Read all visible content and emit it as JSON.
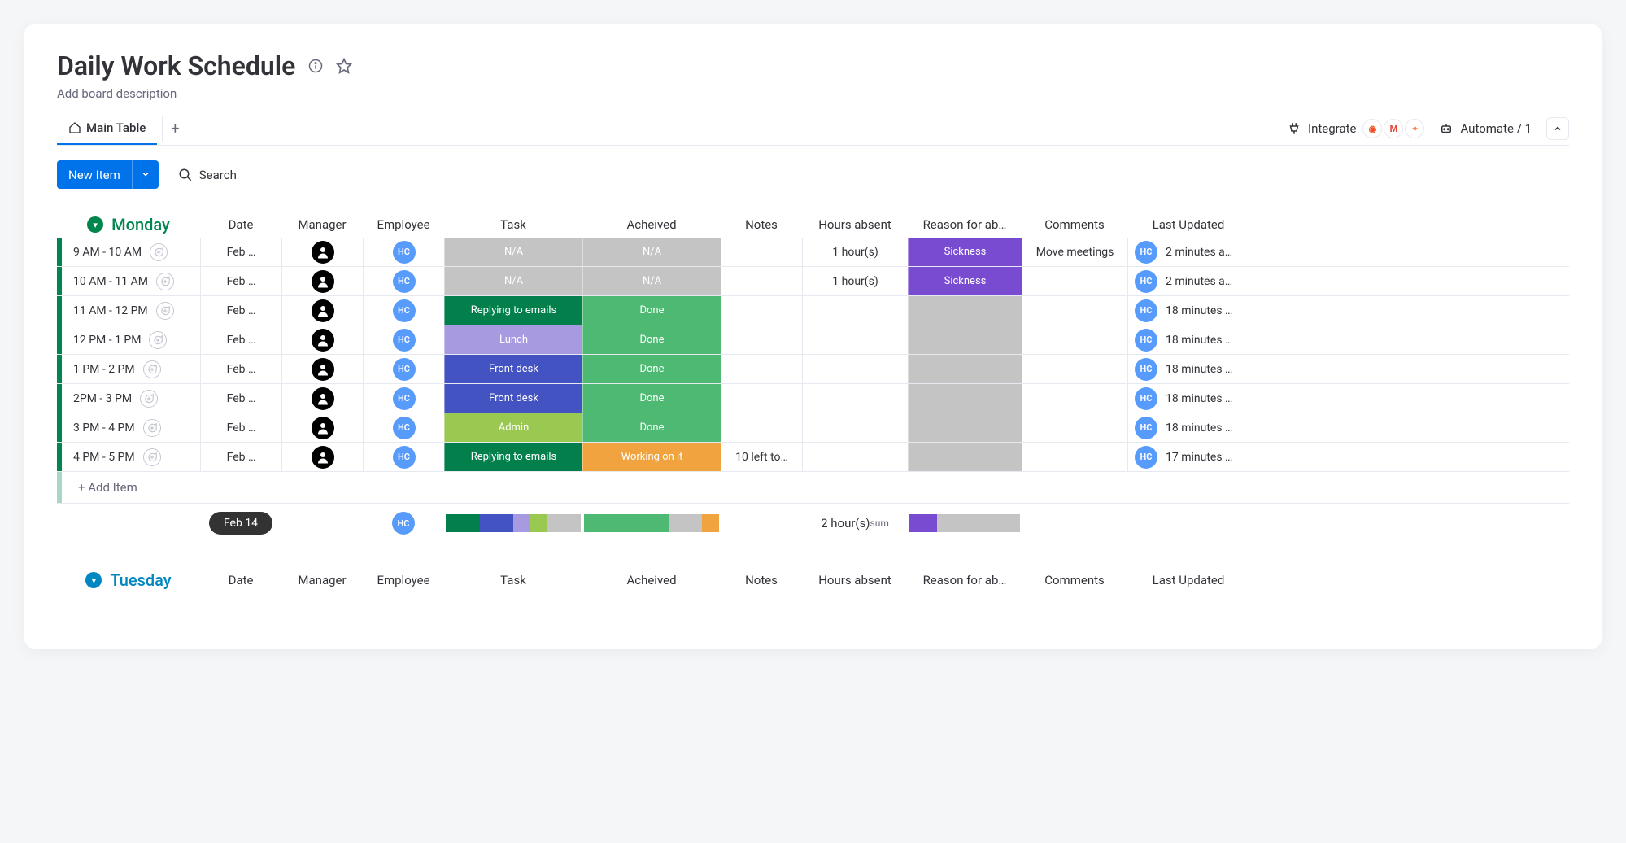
{
  "page_title": "Daily Work Schedule",
  "subtitle": "Add board description",
  "tabs": {
    "main": "Main Table"
  },
  "toolbar": {
    "new_item": "New Item",
    "search": "Search"
  },
  "topright": {
    "integrate": "Integrate",
    "automate": "Automate / 1"
  },
  "columns": [
    "",
    "Date",
    "Manager",
    "Employee",
    "Task",
    "Acheived",
    "Notes",
    "Hours absent",
    "Reason for ab…",
    "Comments",
    "Last Updated"
  ],
  "colors": {
    "accent_blue": "#0073ea",
    "monday_green": "#00854d",
    "tuesday_blue": "#0086c0",
    "status": {
      "na": "#c4c4c4",
      "replying": "#037f4c",
      "done": "#4eb972",
      "lunch": "#a89ae0",
      "frontdesk": "#4353c1",
      "admin": "#9ac951",
      "working": "#f0a33f",
      "sickness": "#784bd1",
      "blank_gray": "#c4c4c4"
    }
  },
  "groups": [
    {
      "name": "Monday",
      "color": "#00854d",
      "rows": [
        {
          "time": "9 AM - 10 AM",
          "date": "Feb …",
          "task": "N/A",
          "task_color": "na",
          "achieved": "N/A",
          "ach_color": "na",
          "notes": "",
          "hours": "1 hour(s)",
          "reason": "Sickness",
          "reason_color": "sickness",
          "comments": "Move meetings",
          "updated": "2 minutes a…"
        },
        {
          "time": "10 AM - 11 AM",
          "date": "Feb …",
          "task": "N/A",
          "task_color": "na",
          "achieved": "N/A",
          "ach_color": "na",
          "notes": "",
          "hours": "1 hour(s)",
          "reason": "Sickness",
          "reason_color": "sickness",
          "comments": "",
          "updated": "2 minutes a…"
        },
        {
          "time": "11 AM - 12 PM",
          "date": "Feb …",
          "task": "Replying to emails",
          "task_color": "replying",
          "achieved": "Done",
          "ach_color": "done",
          "notes": "",
          "hours": "",
          "reason": "",
          "reason_color": "blank_gray",
          "comments": "",
          "updated": "18 minutes …"
        },
        {
          "time": "12 PM - 1 PM",
          "date": "Feb …",
          "task": "Lunch",
          "task_color": "lunch",
          "achieved": "Done",
          "ach_color": "done",
          "notes": "",
          "hours": "",
          "reason": "",
          "reason_color": "blank_gray",
          "comments": "",
          "updated": "18 minutes …"
        },
        {
          "time": "1 PM - 2 PM",
          "date": "Feb …",
          "task": "Front desk",
          "task_color": "frontdesk",
          "achieved": "Done",
          "ach_color": "done",
          "notes": "",
          "hours": "",
          "reason": "",
          "reason_color": "blank_gray",
          "comments": "",
          "updated": "18 minutes …"
        },
        {
          "time": "2PM - 3 PM",
          "date": "Feb …",
          "task": "Front desk",
          "task_color": "frontdesk",
          "achieved": "Done",
          "ach_color": "done",
          "notes": "",
          "hours": "",
          "reason": "",
          "reason_color": "blank_gray",
          "comments": "",
          "updated": "18 minutes …"
        },
        {
          "time": "3 PM - 4 PM",
          "date": "Feb …",
          "task": "Admin",
          "task_color": "admin",
          "achieved": "Done",
          "ach_color": "done",
          "notes": "",
          "hours": "",
          "reason": "",
          "reason_color": "blank_gray",
          "comments": "",
          "updated": "18 minutes …"
        },
        {
          "time": "4 PM - 5 PM",
          "date": "Feb …",
          "task": "Replying to emails",
          "task_color": "replying",
          "achieved": "Working on it",
          "ach_color": "working",
          "notes": "10 left to…",
          "hours": "",
          "reason": "",
          "reason_color": "blank_gray",
          "comments": "",
          "updated": "17 minutes …"
        }
      ],
      "add_item": "+ Add Item",
      "summary": {
        "date_pill": "Feb 14",
        "task_bar": [
          {
            "color": "#037f4c",
            "w": 0.25
          },
          {
            "color": "#4353c1",
            "w": 0.25
          },
          {
            "color": "#a89ae0",
            "w": 0.125
          },
          {
            "color": "#9ac951",
            "w": 0.125
          },
          {
            "color": "#c4c4c4",
            "w": 0.25
          }
        ],
        "ach_bar": [
          {
            "color": "#4eb972",
            "w": 0.625
          },
          {
            "color": "#c4c4c4",
            "w": 0.25
          },
          {
            "color": "#f0a33f",
            "w": 0.125
          }
        ],
        "hours_total": "2 hour(s)",
        "hours_sub": "sum",
        "reason_bar": [
          {
            "color": "#784bd1",
            "w": 0.25
          },
          {
            "color": "#c4c4c4",
            "w": 0.75
          }
        ]
      }
    },
    {
      "name": "Tuesday",
      "color": "#0086c0",
      "rows": [],
      "header_only": true
    }
  ],
  "employee_initials": "HC"
}
